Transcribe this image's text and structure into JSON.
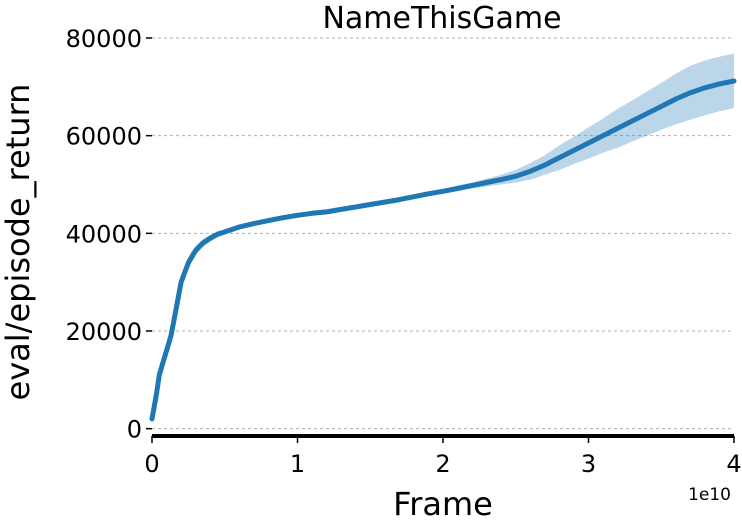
{
  "chart_data": {
    "type": "line",
    "title": "NameThisGame",
    "xlabel": "Frame",
    "ylabel": "eval/episode_return",
    "x_offset_label": "1e10",
    "xlim": [
      0,
      4
    ],
    "ylim": [
      -1500,
      80000
    ],
    "xticks": [
      0,
      1,
      2,
      3,
      4
    ],
    "xtick_labels": [
      "0",
      "1",
      "2",
      "3",
      "4"
    ],
    "yticks": [
      0,
      20000,
      40000,
      60000,
      80000
    ],
    "ytick_labels": [
      "0",
      "20000",
      "40000",
      "60000",
      "80000"
    ],
    "grid": "y-dashed",
    "colors": {
      "line": "#1f77b4",
      "band": "#1f77b4",
      "grid": "#b0b0b0",
      "axis": "#000000"
    },
    "series": [
      {
        "x": [
          0.0,
          0.03,
          0.05,
          0.08,
          0.1,
          0.13,
          0.15,
          0.2,
          0.25,
          0.3,
          0.35,
          0.4,
          0.45,
          0.5,
          0.6,
          0.7,
          0.8,
          0.9,
          1.0,
          1.1,
          1.2,
          1.3,
          1.4,
          1.5,
          1.6,
          1.7,
          1.8,
          1.9,
          2.0,
          2.1,
          2.2,
          2.3,
          2.4,
          2.5,
          2.6,
          2.7,
          2.8,
          2.9,
          3.0,
          3.1,
          3.2,
          3.3,
          3.4,
          3.5,
          3.6,
          3.7,
          3.8,
          3.9,
          4.0
        ],
        "y": [
          2000,
          7000,
          11000,
          14000,
          16000,
          19000,
          22000,
          30000,
          34000,
          36500,
          38000,
          39000,
          39800,
          40300,
          41300,
          42000,
          42600,
          43200,
          43700,
          44100,
          44400,
          44900,
          45400,
          45900,
          46400,
          46900,
          47500,
          48100,
          48600,
          49200,
          49800,
          50400,
          51000,
          51700,
          52700,
          54000,
          55500,
          57000,
          58500,
          60000,
          61500,
          63000,
          64500,
          66000,
          67500,
          68800,
          69800,
          70600,
          71200
        ],
        "lower": [
          1000,
          5500,
          9500,
          12500,
          14500,
          17500,
          20500,
          28500,
          32800,
          35500,
          37200,
          38300,
          39200,
          39800,
          40800,
          41500,
          42100,
          42700,
          43200,
          43600,
          43900,
          44400,
          44900,
          45400,
          45900,
          46400,
          47000,
          47600,
          48100,
          48600,
          49200,
          49600,
          50000,
          50400,
          51000,
          52000,
          53000,
          54200,
          55300,
          56500,
          57500,
          58800,
          60000,
          61200,
          62300,
          63300,
          64200,
          65000,
          65600
        ],
        "upper": [
          3000,
          8500,
          12500,
          15500,
          17500,
          20500,
          23500,
          31500,
          35200,
          37500,
          38800,
          39700,
          40400,
          40800,
          41800,
          42500,
          43100,
          43700,
          44200,
          44600,
          44900,
          45400,
          45900,
          46400,
          46900,
          47400,
          48000,
          48600,
          49100,
          49800,
          50400,
          51200,
          52000,
          53000,
          54400,
          56000,
          58000,
          59800,
          61700,
          63500,
          65500,
          67200,
          69000,
          70800,
          72700,
          74300,
          75400,
          76200,
          76800
        ]
      }
    ]
  }
}
